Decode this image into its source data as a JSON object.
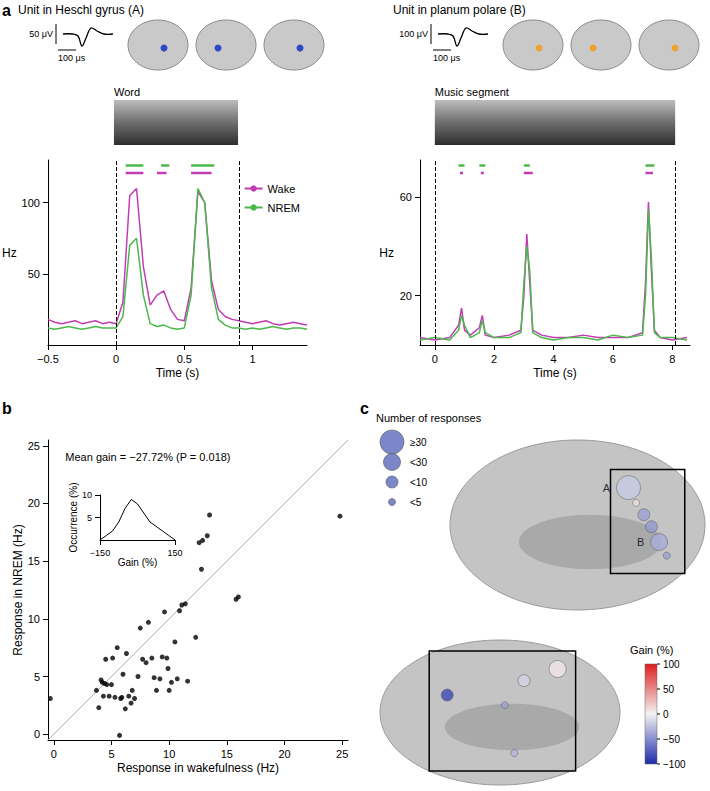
{
  "chart_data": [
    {
      "type": "line",
      "panel": "a",
      "title": "Unit in Heschl gyrus (A)",
      "scale_labels": [
        "50 μV",
        "100 μs"
      ],
      "stimulus_label": "Word",
      "x_label": "Time (s)",
      "y_label": "Hz",
      "x": [
        -0.5,
        -0.45,
        -0.4,
        -0.35,
        -0.3,
        -0.25,
        -0.2,
        -0.15,
        -0.1,
        -0.05,
        0,
        0.05,
        0.1,
        0.15,
        0.2,
        0.25,
        0.3,
        0.35,
        0.4,
        0.45,
        0.5,
        0.55,
        0.6,
        0.65,
        0.7,
        0.75,
        0.8,
        0.85,
        0.9,
        0.95,
        1,
        1.05,
        1.1,
        1.15,
        1.2,
        1.25,
        1.3,
        1.35,
        1.4
      ],
      "series": [
        {
          "name": "Wake",
          "color": "#c23cb4",
          "values": [
            18,
            16,
            15,
            16,
            17,
            15,
            16,
            17,
            15,
            16,
            15,
            30,
            105,
            110,
            55,
            28,
            35,
            38,
            25,
            18,
            17,
            40,
            108,
            100,
            45,
            25,
            20,
            18,
            17,
            16,
            15,
            16,
            17,
            15,
            14,
            15,
            16,
            15,
            14
          ]
        },
        {
          "name": "NREM",
          "color": "#4cb84c",
          "values": [
            12,
            11,
            12,
            13,
            12,
            11,
            12,
            13,
            12,
            12,
            12,
            20,
            70,
            75,
            35,
            15,
            13,
            14,
            12,
            11,
            12,
            35,
            110,
            100,
            40,
            18,
            14,
            12,
            12,
            11,
            12,
            11,
            12,
            13,
            12,
            11,
            12,
            12,
            11
          ]
        }
      ],
      "significance": [
        {
          "name": "NREM",
          "intervals": [
            [
              0.07,
              0.2
            ],
            [
              0.33,
              0.39
            ],
            [
              0.55,
              0.72
            ]
          ]
        },
        {
          "name": "Wake",
          "intervals": [
            [
              0.07,
              0.2
            ],
            [
              0.3,
              0.37
            ],
            [
              0.55,
              0.7
            ]
          ]
        }
      ],
      "stimulus_window": [
        0,
        0.9
      ],
      "xlim": [
        -0.5,
        1.4
      ],
      "xticks": [
        {
          "value": -0.5,
          "label": "−0.5"
        },
        0,
        0.5,
        1
      ],
      "ylim": [
        0,
        130
      ],
      "yticks": [
        50,
        100
      ],
      "legend": "top-right"
    },
    {
      "type": "line",
      "title": "Unit in planum polare (B)",
      "scale_labels": [
        "100 μV",
        "100 μs"
      ],
      "stimulus_label": "Music segment",
      "x_label": "Time (s)",
      "y_label": "Hz",
      "x": [
        -0.5,
        0,
        0.5,
        0.8,
        0.9,
        1.0,
        1.2,
        1.5,
        1.6,
        1.7,
        2.0,
        2.5,
        2.9,
        3.0,
        3.1,
        3.2,
        3.3,
        3.6,
        4.0,
        4.5,
        5.0,
        5.5,
        6.0,
        6.5,
        7.0,
        7.1,
        7.2,
        7.3,
        7.4,
        7.6,
        8.0,
        8.5
      ],
      "series": [
        {
          "name": "Wake",
          "color": "#c23cb4",
          "values": [
            3,
            2,
            3,
            8,
            15,
            6,
            4,
            7,
            12,
            4,
            3,
            4,
            6,
            20,
            45,
            25,
            6,
            4,
            3,
            3,
            4,
            3,
            3,
            3,
            5,
            25,
            58,
            30,
            6,
            3,
            2,
            3
          ]
        },
        {
          "name": "NREM",
          "color": "#4cb84c",
          "values": [
            2,
            3,
            2,
            6,
            12,
            8,
            3,
            5,
            10,
            5,
            3,
            3,
            5,
            25,
            40,
            30,
            5,
            3,
            2,
            3,
            3,
            2,
            4,
            3,
            4,
            20,
            55,
            35,
            5,
            3,
            3,
            2
          ]
        }
      ],
      "significance": [
        {
          "name": "NREM",
          "intervals": [
            [
              0.8,
              1.0
            ],
            [
              1.5,
              1.7
            ],
            [
              3.0,
              3.2
            ],
            [
              7.1,
              7.4
            ]
          ]
        },
        {
          "name": "Wake",
          "intervals": [
            [
              0.85,
              0.95
            ],
            [
              1.55,
              1.65
            ],
            [
              3.0,
              3.3
            ],
            [
              7.1,
              7.35
            ]
          ]
        }
      ],
      "stimulus_window": [
        0,
        8.1
      ],
      "xlim": [
        -0.5,
        8.6
      ],
      "xticks": [
        0,
        2,
        4,
        6,
        8
      ],
      "ylim": [
        0,
        75
      ],
      "yticks": [
        20,
        60
      ]
    },
    {
      "type": "scatter",
      "panel": "b",
      "annotation": "Mean gain = −27.72% (P = 0.018)",
      "x_label": "Response in wakefulness (Hz)",
      "y_label": "Response in NREM (Hz)",
      "color": "#000000",
      "marker": "circle",
      "x": [
        -0.3,
        3.7,
        3.9,
        4.1,
        4.2,
        4.3,
        4.4,
        4.5,
        4.6,
        4.8,
        5.0,
        5.1,
        5.3,
        5.5,
        5.7,
        5.8,
        5.9,
        6.0,
        6.2,
        6.3,
        6.5,
        6.7,
        6.8,
        7.0,
        7.3,
        7.5,
        7.7,
        8.0,
        8.2,
        8.5,
        8.7,
        8.9,
        9.2,
        9.4,
        9.6,
        9.8,
        9.9,
        10.0,
        10.2,
        10.5,
        10.7,
        10.9,
        11.1,
        11.4,
        11.6,
        12.3,
        12.6,
        12.8,
        12.9,
        13.3,
        13.5,
        15.8,
        16.0,
        24.8
      ],
      "values": [
        3.1,
        3.8,
        2.3,
        4.7,
        4.5,
        3.3,
        4.4,
        6.5,
        4.3,
        3.3,
        4.3,
        6.6,
        3.2,
        7.5,
        -0.1,
        3.1,
        3.2,
        5.2,
        2.2,
        7.0,
        3.3,
        2.7,
        3.8,
        3.1,
        5.0,
        9.2,
        6.5,
        6.2,
        9.7,
        6.6,
        4.9,
        3.8,
        4.8,
        6.7,
        10.6,
        6.6,
        5.7,
        3.8,
        4.5,
        8.0,
        4.8,
        10.7,
        11.2,
        11.3,
        4.6,
        8.4,
        16.6,
        14.3,
        16.8,
        17.2,
        19.0,
        11.7,
        11.9,
        18.9
      ],
      "xlim": [
        -0.5,
        25.5
      ],
      "xticks": [
        0,
        5,
        10,
        15,
        20,
        25
      ],
      "ylim": [
        -0.5,
        25.5
      ],
      "yticks": [
        0,
        5,
        10,
        15,
        20,
        25
      ],
      "inset": {
        "type": "line",
        "x_label": "Gain (%)",
        "y_label": "Occurrence (%)",
        "color": "#000000",
        "x": [
          -150,
          -125,
          -100,
          -75,
          -50,
          -25,
          0,
          25,
          50,
          75,
          100,
          125,
          150
        ],
        "values": [
          0,
          1,
          2,
          4,
          7,
          9,
          8,
          6,
          4,
          3,
          2,
          1,
          0
        ],
        "xlim": [
          -150,
          150
        ],
        "xticks": [
          {
            "value": -150,
            "label": "−150"
          },
          150
        ],
        "ylim": [
          0,
          10
        ],
        "yticks": [
          5,
          10
        ]
      }
    },
    {
      "type": "bubble",
      "panel": "c",
      "tick_labels": false,
      "size_legend": {
        "title": "Number of responses",
        "bins": [
          {
            "label": "≥30",
            "min": 30
          },
          {
            "label": "<30",
            "min": 10
          },
          {
            "label": "<10",
            "min": 5
          },
          {
            "label": "<5",
            "min": 0
          }
        ]
      },
      "colorbar": {
        "label": "Gain (%)",
        "range": [
          -100,
          100
        ],
        "ticks": [
          {
            "value": -100,
            "label": "−100"
          },
          {
            "value": -50,
            "label": "−50"
          },
          0,
          50,
          100
        ]
      },
      "views": [
        {
          "xlim": [
            0,
            100
          ],
          "ylim": [
            0,
            100
          ],
          "sites": {
            "x": [
              70,
              73,
              76,
              79,
              82,
              85
            ],
            "y": [
              72,
              63,
              56,
              49,
              40,
              32
            ],
            "responses": [
              34,
              3,
              8,
              7,
              18,
              4
            ],
            "gain": [
              -20,
              10,
              -40,
              -45,
              -35,
              -40
            ],
            "labels": [
              "A",
              null,
              null,
              null,
              "B",
              null
            ]
          }
        },
        {
          "xlim": [
            0,
            100
          ],
          "ylim": [
            0,
            100
          ],
          "sites": {
            "x": [
              28,
              52,
              60,
              74,
              56
            ],
            "y": [
              62,
              55,
              72,
              80,
              22
            ],
            "responses": [
              7,
              3,
              8,
              20,
              3
            ],
            "gain": [
              -85,
              -40,
              -15,
              5,
              -30
            ],
            "labels": [
              null,
              null,
              null,
              null,
              null
            ]
          }
        }
      ]
    }
  ]
}
